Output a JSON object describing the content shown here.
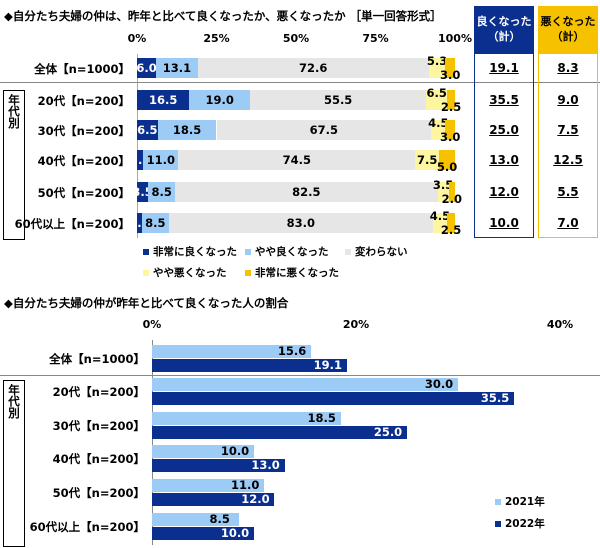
{
  "chart_data": [
    {
      "type": "bar",
      "stacked": true,
      "orientation": "horizontal",
      "title": "◆自分たち夫婦の仲は、昨年と比べて良くなったか、悪くなったか ［単一回答形式］",
      "xticks": [
        "0%",
        "25%",
        "50%",
        "75%",
        "100%"
      ],
      "xlim": [
        0,
        100
      ],
      "categories": [
        "全体【n=1000】",
        "20代【n=200】",
        "30代【n=200】",
        "40代【n=200】",
        "50代【n=200】",
        "60代以上【n=200】"
      ],
      "group_label": "年代別",
      "series": [
        {
          "name": "非常に良くなった",
          "color": "#0b2f8e",
          "values": [
            6.0,
            16.5,
            6.5,
            2.0,
            3.5,
            1.5
          ]
        },
        {
          "name": "やや良くなった",
          "color": "#9ccbf5",
          "values": [
            13.1,
            19.0,
            18.5,
            11.0,
            8.5,
            8.5
          ]
        },
        {
          "name": "変わらない",
          "color": "#e6e6e6",
          "values": [
            72.6,
            55.5,
            67.5,
            74.5,
            82.5,
            83.0
          ]
        },
        {
          "name": "やや悪くなった",
          "color": "#fdf5a0",
          "values": [
            5.3,
            6.5,
            4.5,
            7.5,
            3.5,
            4.5
          ]
        },
        {
          "name": "非常に悪くなった",
          "color": "#f6c200",
          "values": [
            3.0,
            2.5,
            3.0,
            5.0,
            2.0,
            2.5
          ]
        }
      ],
      "summary": [
        {
          "header": "良くなった（計）",
          "color": "#0b2f8e",
          "values": [
            "19.1",
            "35.5",
            "25.0",
            "13.0",
            "12.0",
            "10.0"
          ]
        },
        {
          "header": "悪くなった（計）",
          "color": "#f6c200",
          "values": [
            "8.3",
            "9.0",
            "7.5",
            "12.5",
            "5.5",
            "7.0"
          ]
        }
      ],
      "legend_placement": "bottom"
    },
    {
      "type": "bar",
      "orientation": "horizontal",
      "title": "◆自分たち夫婦の仲が昨年と比べて良くなった人の割合",
      "xticks": [
        "0%",
        "20%",
        "40%"
      ],
      "xlim": [
        0,
        40
      ],
      "categories": [
        "全体【n=1000】",
        "20代【n=200】",
        "30代【n=200】",
        "40代【n=200】",
        "50代【n=200】",
        "60代以上【n=200】"
      ],
      "group_label": "年代別",
      "series": [
        {
          "name": "2021年",
          "color": "#9ccbf5",
          "values": [
            15.6,
            30.0,
            18.5,
            10.0,
            11.0,
            8.5
          ]
        },
        {
          "name": "2022年",
          "color": "#0b2f8e",
          "values": [
            19.1,
            35.5,
            25.0,
            13.0,
            12.0,
            10.0
          ]
        }
      ],
      "legend_placement": "bottom-right"
    }
  ]
}
